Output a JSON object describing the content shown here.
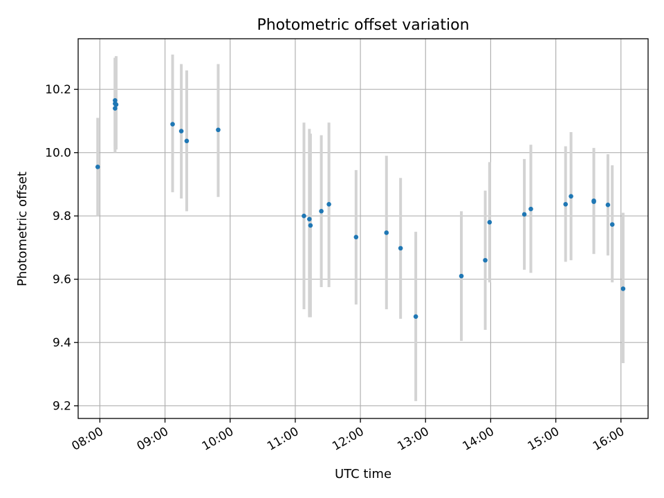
{
  "chart_data": {
    "type": "scatter",
    "title": "Photometric offset variation",
    "xlabel": "UTC time",
    "ylabel": "Photometric offset",
    "grid": true,
    "xlim": [
      "07:40",
      "16:25"
    ],
    "ylim": [
      9.16,
      10.36
    ],
    "x_ticks": [
      "08:00",
      "09:00",
      "10:00",
      "11:00",
      "12:00",
      "13:00",
      "14:00",
      "15:00",
      "16:00"
    ],
    "y_ticks": [
      "9.2",
      "9.4",
      "9.6",
      "9.8",
      "10.0",
      "10.2"
    ],
    "colors": {
      "points": "#1f77b4",
      "errorbars": "#d3d3d3"
    },
    "series": [
      {
        "points": [
          {
            "x": "07:58",
            "y": 9.955,
            "ylo": 9.8,
            "yhi": 10.11
          },
          {
            "x": "08:14",
            "y": 10.165,
            "ylo": 10.02,
            "yhi": 10.3
          },
          {
            "x": "08:14",
            "y": 10.155,
            "ylo": 10.01,
            "yhi": 10.3
          },
          {
            "x": "08:14",
            "y": 10.14,
            "ylo": 10.0,
            "yhi": 10.3
          },
          {
            "x": "08:15",
            "y": 10.152,
            "ylo": 10.01,
            "yhi": 10.305
          },
          {
            "x": "09:07",
            "y": 10.09,
            "ylo": 9.875,
            "yhi": 10.31
          },
          {
            "x": "09:15",
            "y": 10.068,
            "ylo": 9.855,
            "yhi": 10.28
          },
          {
            "x": "09:20",
            "y": 10.037,
            "ylo": 9.815,
            "yhi": 10.26
          },
          {
            "x": "09:49",
            "y": 10.072,
            "ylo": 9.86,
            "yhi": 10.28
          },
          {
            "x": "11:08",
            "y": 9.8,
            "ylo": 9.505,
            "yhi": 10.095
          },
          {
            "x": "11:13",
            "y": 9.79,
            "ylo": 9.48,
            "yhi": 10.075
          },
          {
            "x": "11:14",
            "y": 9.77,
            "ylo": 9.48,
            "yhi": 10.06
          },
          {
            "x": "11:24",
            "y": 9.815,
            "ylo": 9.575,
            "yhi": 10.055
          },
          {
            "x": "11:31",
            "y": 9.837,
            "ylo": 9.575,
            "yhi": 10.095
          },
          {
            "x": "11:56",
            "y": 9.733,
            "ylo": 9.52,
            "yhi": 9.945
          },
          {
            "x": "12:24",
            "y": 9.747,
            "ylo": 9.505,
            "yhi": 9.99
          },
          {
            "x": "12:37",
            "y": 9.698,
            "ylo": 9.475,
            "yhi": 9.92
          },
          {
            "x": "12:51",
            "y": 9.482,
            "ylo": 9.215,
            "yhi": 9.75
          },
          {
            "x": "13:33",
            "y": 9.61,
            "ylo": 9.405,
            "yhi": 9.815
          },
          {
            "x": "13:55",
            "y": 9.66,
            "ylo": 9.44,
            "yhi": 9.88
          },
          {
            "x": "13:59",
            "y": 9.78,
            "ylo": 9.59,
            "yhi": 9.97
          },
          {
            "x": "14:31",
            "y": 9.805,
            "ylo": 9.63,
            "yhi": 9.98
          },
          {
            "x": "14:37",
            "y": 9.822,
            "ylo": 9.62,
            "yhi": 10.025
          },
          {
            "x": "15:09",
            "y": 9.837,
            "ylo": 9.655,
            "yhi": 10.02
          },
          {
            "x": "15:14",
            "y": 9.862,
            "ylo": 9.66,
            "yhi": 10.065
          },
          {
            "x": "15:35",
            "y": 9.845,
            "ylo": 9.68,
            "yhi": 10.015
          },
          {
            "x": "15:35",
            "y": 9.848,
            "ylo": 9.68,
            "yhi": 10.01
          },
          {
            "x": "15:48",
            "y": 9.835,
            "ylo": 9.675,
            "yhi": 9.995
          },
          {
            "x": "15:52",
            "y": 9.773,
            "ylo": 9.59,
            "yhi": 9.96
          },
          {
            "x": "16:02",
            "y": 9.57,
            "ylo": 9.335,
            "yhi": 9.81
          }
        ]
      }
    ]
  }
}
